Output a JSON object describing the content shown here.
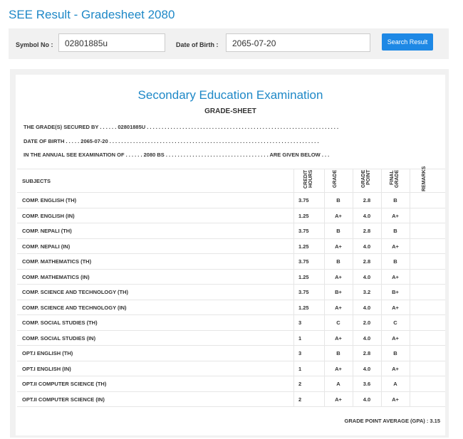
{
  "header": {
    "title": "SEE Result - Gradesheet 2080"
  },
  "search": {
    "symbol_label": "Symbol No :",
    "symbol_value": "02801885u",
    "dob_label": "Date of Birth :",
    "dob_value": "2065-07-20",
    "button": "Search Result"
  },
  "sheet": {
    "heading": "Secondary Education Examination",
    "subheading": "GRADE-SHEET",
    "lines": [
      "THE GRADE(S) SECURED BY . . . . . . 02801885U . . . . . . . . . . . . . . . . . . . . . . . . . . . . . . . . . . . . . . . . . . . . . . . . . . . . . . . . . . . . . . . . .",
      "DATE OF BIRTH . . . . . 2065-07-20 . . . . . . . . . . . . . . . . . . . . . . . . . . . . . . . . . . . . . . . . . . . . . . . . . . . . . . . . . . . . . . . . . . . . . . .",
      "IN THE ANNUAL SEE EXAMINATION OF . . . . . . 2080 BS . . . . . . . . . . . . . . . . . . . . . . . . . . . . . . . . . . . ARE GIVEN BELOW . . ."
    ],
    "table": {
      "columns": [
        "SUBJECTS",
        "CREDIT HOURS",
        "GRADE",
        "GRADE POINT",
        "FINAL GRADE",
        "REMARKS"
      ],
      "rows": [
        [
          "COMP. ENGLISH (TH)",
          "3.75",
          "B",
          "2.8",
          "B"
        ],
        [
          "COMP. ENGLISH (IN)",
          "1.25",
          "A+",
          "4.0",
          "A+"
        ],
        [
          "COMP. NEPALI (TH)",
          "3.75",
          "B",
          "2.8",
          "B"
        ],
        [
          "COMP. NEPALI (IN)",
          "1.25",
          "A+",
          "4.0",
          "A+"
        ],
        [
          "COMP. MATHEMATICS (TH)",
          "3.75",
          "B",
          "2.8",
          "B"
        ],
        [
          "COMP. MATHEMATICS (IN)",
          "1.25",
          "A+",
          "4.0",
          "A+"
        ],
        [
          "COMP. SCIENCE AND TECHNOLOGY (TH)",
          "3.75",
          "B+",
          "3.2",
          "B+"
        ],
        [
          "COMP. SCIENCE AND TECHNOLOGY (IN)",
          "1.25",
          "A+",
          "4.0",
          "A+"
        ],
        [
          "COMP. SOCIAL STUDIES (TH)",
          "3",
          "C",
          "2.0",
          "C"
        ],
        [
          "COMP. SOCIAL STUDIES (IN)",
          "1",
          "A+",
          "4.0",
          "A+"
        ],
        [
          "OPT.I ENGLISH (TH)",
          "3",
          "B",
          "2.8",
          "B"
        ],
        [
          "OPT.I ENGLISH (IN)",
          "1",
          "A+",
          "4.0",
          "A+"
        ],
        [
          "OPT.II COMPUTER SCIENCE (TH)",
          "2",
          "A",
          "3.6",
          "A"
        ],
        [
          "OPT.II COMPUTER SCIENCE (IN)",
          "2",
          "A+",
          "4.0",
          "A+"
        ]
      ]
    },
    "gpa": "GRADE POINT AVERAGE (GPA) : 3.15"
  }
}
